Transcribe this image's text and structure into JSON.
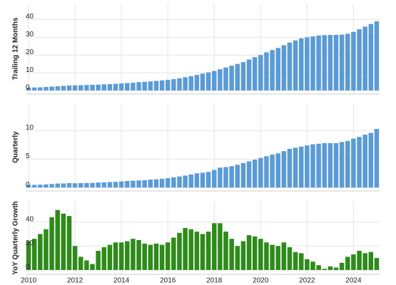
{
  "chart_data": [
    {
      "type": "bar",
      "ylabel": "Trailing 12 Months",
      "color": "#5b9bd5",
      "grid": true,
      "ylim": [
        -2,
        49
      ],
      "yticks": [
        0,
        10,
        20,
        30,
        40
      ],
      "values": [
        1.6,
        1.7,
        1.8,
        2.0,
        2.2,
        2.4,
        2.6,
        2.8,
        2.9,
        3.0,
        3.1,
        3.2,
        3.3,
        3.5,
        3.6,
        3.8,
        4.0,
        4.2,
        4.4,
        4.7,
        4.9,
        5.1,
        5.4,
        5.7,
        6.0,
        6.4,
        6.9,
        7.5,
        8.1,
        8.8,
        9.5,
        10.2,
        11.0,
        12.0,
        13.0,
        14.0,
        15.0,
        16.0,
        17.5,
        18.8,
        20.0,
        21.5,
        22.8,
        24.0,
        25.5,
        27.0,
        28.2,
        29.4,
        30.0,
        30.5,
        31.0,
        31.2,
        31.3,
        31.4,
        31.5,
        32.0,
        33.0,
        34.5,
        36.0,
        37.5,
        39.0
      ]
    },
    {
      "type": "bar",
      "ylabel": "Quarterly",
      "color": "#5b9bd5",
      "grid": true,
      "ylim": [
        -0.6,
        14.8
      ],
      "yticks": [
        0,
        5,
        10
      ],
      "values": [
        0.45,
        0.47,
        0.5,
        0.55,
        0.62,
        0.7,
        0.72,
        0.78,
        0.75,
        0.78,
        0.8,
        0.82,
        0.88,
        0.92,
        0.97,
        1.0,
        1.08,
        1.15,
        1.2,
        1.25,
        1.3,
        1.4,
        1.45,
        1.55,
        1.65,
        1.8,
        1.95,
        2.1,
        2.3,
        2.5,
        2.6,
        2.75,
        3.1,
        3.5,
        3.6,
        3.75,
        4.0,
        4.3,
        4.6,
        4.9,
        5.2,
        5.5,
        5.8,
        6.0,
        6.4,
        6.8,
        7.0,
        7.2,
        7.4,
        7.6,
        7.7,
        7.8,
        7.8,
        7.8,
        8.0,
        8.2,
        8.6,
        8.9,
        9.3,
        9.6,
        10.3
      ]
    },
    {
      "type": "bar",
      "ylabel": "YoY Quarterly Growth",
      "color": "#2e8b1a",
      "grid": true,
      "ylim": [
        -3.6,
        57
      ],
      "yticks": [
        0,
        20,
        40
      ],
      "categories": [
        "2010",
        null,
        null,
        null,
        null,
        null,
        null,
        null,
        "2012",
        null,
        null,
        null,
        null,
        null,
        null,
        null,
        "2014",
        null,
        null,
        null,
        null,
        null,
        null,
        null,
        "2016",
        null,
        null,
        null,
        null,
        null,
        null,
        null,
        "2018",
        null,
        null,
        null,
        null,
        null,
        null,
        null,
        "2020",
        null,
        null,
        null,
        null,
        null,
        null,
        null,
        "2022",
        null,
        null,
        null,
        null,
        null,
        null,
        null,
        "2024",
        null,
        null,
        null,
        null
      ],
      "values": [
        24,
        26,
        30,
        34,
        44,
        50,
        47,
        45,
        20,
        11,
        8,
        5,
        16,
        19,
        21,
        23,
        23,
        24,
        26,
        25,
        22,
        21,
        22,
        21,
        23,
        27,
        31,
        35,
        34,
        32,
        30,
        32,
        39,
        39,
        32,
        26,
        20,
        24,
        29,
        28,
        26,
        23,
        21,
        20,
        23,
        19,
        15,
        14,
        9,
        7,
        4,
        1,
        3,
        2,
        6,
        11,
        13,
        16,
        14,
        15,
        10
      ]
    }
  ]
}
